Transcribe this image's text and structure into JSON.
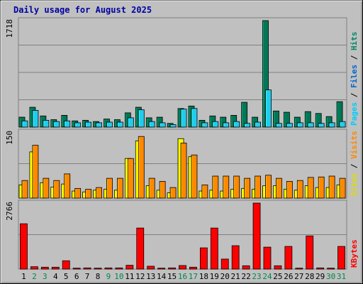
{
  "chart_data": {
    "type": "bar",
    "title": "Daily usage for August 2025",
    "x": [
      "1",
      "2",
      "3",
      "4",
      "5",
      "6",
      "7",
      "8",
      "9",
      "10",
      "11",
      "12",
      "13",
      "14",
      "15",
      "16",
      "17",
      "18",
      "19",
      "20",
      "21",
      "22",
      "23",
      "24",
      "25",
      "26",
      "27",
      "28",
      "29",
      "30",
      "31"
    ],
    "weekend_days": [
      "2",
      "3",
      "9",
      "10",
      "16",
      "17",
      "23",
      "24",
      "30",
      "31"
    ],
    "panels": [
      {
        "name": "hits-files-pages",
        "ymax_label": "1718",
        "ymax": 1718,
        "legend": [
          "Pages",
          "Files",
          "Hits"
        ],
        "series": [
          {
            "name": "Hits",
            "color": "#007755",
            "values": [
              160,
              320,
              180,
              120,
              190,
              100,
              110,
              90,
              130,
              120,
              230,
              320,
              150,
              160,
              60,
              300,
              340,
              110,
              180,
              160,
              190,
              400,
              160,
              1718,
              260,
              240,
              160,
              250,
              220,
              170,
              410
            ]
          },
          {
            "name": "Files",
            "color": "#22CCEE",
            "values": [
              100,
              270,
              110,
              90,
              100,
              70,
              80,
              70,
              80,
              80,
              150,
              280,
              90,
              70,
              40,
              290,
              300,
              70,
              90,
              70,
              90,
              60,
              80,
              600,
              60,
              60,
              70,
              70,
              60,
              70,
              90
            ]
          }
        ]
      },
      {
        "name": "visits-sites",
        "ymax_label": "150",
        "ymax": 150,
        "legend": [
          "Sites",
          "Visits"
        ],
        "series": [
          {
            "name": "Sites",
            "color": "#FFFF00",
            "values": [
              30,
              105,
              35,
              25,
              32,
              16,
              14,
              18,
              20,
              18,
              90,
              130,
              28,
              18,
              12,
              135,
              94,
              16,
              18,
              16,
              20,
              22,
              20,
              28,
              28,
              20,
              18,
              28,
              24,
              24,
              30
            ]
          },
          {
            "name": "Visits",
            "color": "#FF8800",
            "values": [
              40,
              120,
              45,
              40,
              55,
              22,
              20,
              24,
              45,
              45,
              90,
              140,
              45,
              38,
              24,
              125,
              98,
              30,
              50,
              50,
              50,
              45,
              50,
              52,
              45,
              38,
              40,
              47,
              48,
              50,
              45
            ]
          }
        ]
      },
      {
        "name": "kbytes",
        "ymax_label": "2766",
        "ymax": 2766,
        "legend": [
          "KBytes"
        ],
        "series": [
          {
            "name": "KBytes",
            "color": "#FF0000",
            "values": [
              1900,
              100,
              80,
              80,
              350,
              40,
              50,
              40,
              50,
              50,
              160,
              1720,
              120,
              40,
              50,
              150,
              80,
              890,
              1720,
              420,
              980,
              140,
              2766,
              920,
              140,
              950,
              40,
              1390,
              50,
              40,
              950
            ]
          }
        ]
      }
    ]
  }
}
